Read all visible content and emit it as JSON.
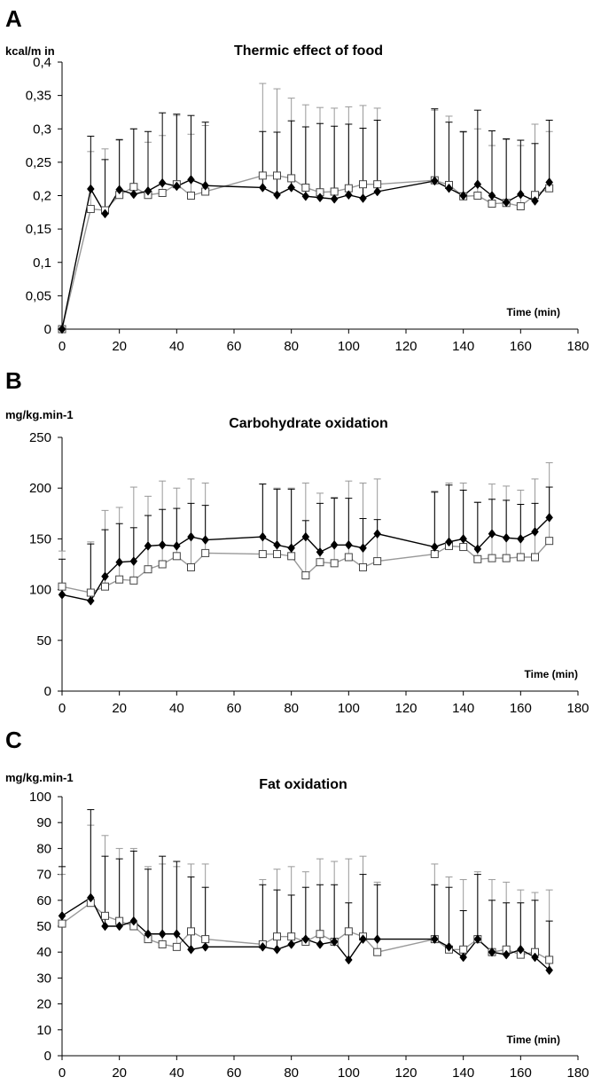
{
  "chart_data": [
    {
      "type": "line",
      "panel_letter": "A",
      "title": "Thermic effect of food",
      "ylabel": "kcal/m in",
      "xlabel": "Time (min)",
      "xlim": [
        0,
        180
      ],
      "ylim": [
        0,
        0.4
      ],
      "x_ticks": [
        0,
        20,
        40,
        60,
        80,
        100,
        120,
        140,
        160,
        180
      ],
      "y_ticks": [
        0,
        0.05,
        0.1,
        0.15,
        0.2,
        0.25,
        0.3,
        0.35,
        0.4
      ],
      "y_tick_labels": [
        "0",
        "0,05",
        "0,1",
        "0,15",
        "0,2",
        "0,25",
        "0,3",
        "0,35",
        "0,4"
      ],
      "grid": false,
      "series": [
        {
          "marker": "filled-diamond",
          "color": "#000000",
          "x": [
            0,
            10,
            15,
            20,
            25,
            30,
            35,
            40,
            45,
            50,
            70,
            75,
            80,
            85,
            90,
            95,
            100,
            105,
            110,
            130,
            135,
            140,
            145,
            150,
            155,
            160,
            165,
            170
          ],
          "y": [
            0,
            0.21,
            0.173,
            0.209,
            0.202,
            0.207,
            0.219,
            0.214,
            0.224,
            0.215,
            0.212,
            0.201,
            0.212,
            0.199,
            0.197,
            0.195,
            0.201,
            0.196,
            0.206,
            0.222,
            0.211,
            0.2,
            0.217,
            0.2,
            0.19,
            0.202,
            0.192,
            0.22
          ],
          "err_upper": [
            0,
            0.289,
            0.254,
            0.284,
            0.3,
            0.296,
            0.324,
            0.322,
            0.32,
            0.31,
            0.296,
            0.295,
            0.312,
            0.303,
            0.308,
            0.304,
            0.307,
            0.301,
            0.313,
            0.33,
            0.31,
            0.296,
            0.328,
            0.297,
            0.285,
            0.283,
            0.278,
            0.313
          ]
        },
        {
          "marker": "open-square",
          "color": "#999999",
          "x": [
            0,
            10,
            15,
            20,
            25,
            30,
            35,
            40,
            45,
            50,
            70,
            75,
            80,
            85,
            90,
            95,
            100,
            105,
            110,
            130,
            135,
            140,
            145,
            150,
            155,
            160,
            165,
            170
          ],
          "y": [
            0,
            0.18,
            0.178,
            0.201,
            0.213,
            0.201,
            0.204,
            0.217,
            0.2,
            0.206,
            0.23,
            0.23,
            0.226,
            0.212,
            0.205,
            0.206,
            0.211,
            0.217,
            0.217,
            0.223,
            0.216,
            0.199,
            0.2,
            0.188,
            0.189,
            0.184,
            0.201,
            0.211
          ],
          "err_upper": [
            0,
            0.266,
            0.27,
            0.283,
            0.3,
            0.28,
            0.29,
            0.32,
            0.292,
            0.305,
            0.368,
            0.36,
            0.346,
            0.336,
            0.332,
            0.331,
            0.333,
            0.335,
            0.331,
            0.328,
            0.319,
            0.295,
            0.3,
            0.275,
            0.284,
            0.275,
            0.307,
            0.296
          ]
        }
      ]
    },
    {
      "type": "line",
      "panel_letter": "B",
      "title": "Carbohydrate oxidation",
      "ylabel": "mg/kg.min-1",
      "xlabel": "Time (min)",
      "xlim": [
        0,
        180
      ],
      "ylim": [
        0,
        250
      ],
      "x_ticks": [
        0,
        20,
        40,
        60,
        80,
        100,
        120,
        140,
        160,
        180
      ],
      "y_ticks": [
        0,
        50,
        100,
        150,
        200,
        250
      ],
      "y_tick_labels": [
        "0",
        "50",
        "100",
        "150",
        "200",
        "250"
      ],
      "grid": false,
      "series": [
        {
          "marker": "filled-diamond",
          "color": "#000000",
          "x": [
            0,
            10,
            15,
            20,
            25,
            30,
            35,
            40,
            45,
            50,
            70,
            75,
            80,
            85,
            90,
            95,
            100,
            105,
            110,
            130,
            135,
            140,
            145,
            150,
            155,
            160,
            165,
            170
          ],
          "y": [
            95,
            89,
            113,
            127,
            128,
            143,
            144,
            143,
            152,
            149,
            152,
            144,
            141,
            152,
            137,
            144,
            144,
            141,
            155,
            142,
            147,
            150,
            140,
            155,
            151,
            150,
            157,
            171
          ],
          "err_upper": [
            130,
            145,
            159,
            165,
            161,
            173,
            179,
            180,
            185,
            183,
            204,
            199,
            199,
            168,
            185,
            190,
            190,
            170,
            169,
            196,
            203,
            198,
            186,
            189,
            188,
            184,
            185,
            201
          ]
        },
        {
          "marker": "open-square",
          "color": "#999999",
          "x": [
            0,
            10,
            15,
            20,
            25,
            30,
            35,
            40,
            45,
            50,
            70,
            75,
            80,
            85,
            90,
            95,
            100,
            105,
            110,
            130,
            135,
            140,
            145,
            150,
            155,
            160,
            165,
            170
          ],
          "y": [
            103,
            97,
            103,
            110,
            109,
            120,
            125,
            133,
            122,
            136,
            135,
            135,
            133,
            114,
            127,
            126,
            132,
            122,
            128,
            135,
            143,
            142,
            130,
            131,
            131,
            132,
            132,
            148
          ],
          "err_upper": [
            138,
            147,
            178,
            181,
            201,
            192,
            207,
            200,
            209,
            205,
            204,
            200,
            200,
            205,
            195,
            191,
            207,
            205,
            209,
            197,
            205,
            205,
            186,
            204,
            202,
            198,
            209,
            225
          ]
        }
      ]
    },
    {
      "type": "line",
      "panel_letter": "C",
      "title": "Fat oxidation",
      "ylabel": "mg/kg.min-1",
      "xlabel": "Time (min)",
      "xlim": [
        0,
        180
      ],
      "ylim": [
        0,
        100
      ],
      "x_ticks": [
        0,
        20,
        40,
        60,
        80,
        100,
        120,
        140,
        160,
        180
      ],
      "y_ticks": [
        0,
        10,
        20,
        30,
        40,
        50,
        60,
        70,
        80,
        90,
        100
      ],
      "y_tick_labels": [
        "0",
        "10",
        "20",
        "30",
        "40",
        "50",
        "60",
        "70",
        "80",
        "90",
        "100"
      ],
      "grid": false,
      "series": [
        {
          "marker": "filled-diamond",
          "color": "#000000",
          "x": [
            0,
            10,
            15,
            20,
            25,
            30,
            35,
            40,
            45,
            50,
            70,
            75,
            80,
            85,
            90,
            95,
            100,
            105,
            110,
            130,
            135,
            140,
            145,
            150,
            155,
            160,
            165,
            170
          ],
          "y": [
            54,
            61,
            50,
            50,
            52,
            47,
            47,
            47,
            41,
            42,
            42,
            41,
            43,
            45,
            43,
            44,
            37,
            45,
            45,
            45,
            42,
            38,
            45,
            40,
            39,
            41,
            38,
            33
          ],
          "err_upper": [
            73,
            95,
            77,
            76,
            79,
            72,
            77,
            75,
            69,
            65,
            66,
            64,
            62,
            65,
            66,
            66,
            59,
            70,
            66,
            66,
            65,
            56,
            70,
            60,
            59,
            59,
            60,
            52
          ]
        },
        {
          "marker": "open-square",
          "color": "#999999",
          "x": [
            0,
            10,
            15,
            20,
            25,
            30,
            35,
            40,
            45,
            50,
            70,
            75,
            80,
            85,
            90,
            95,
            100,
            105,
            110,
            130,
            135,
            140,
            145,
            150,
            155,
            160,
            165,
            170
          ],
          "y": [
            51,
            59,
            54,
            52,
            50,
            45,
            43,
            42,
            48,
            45,
            43,
            46,
            46,
            44,
            47,
            44,
            48,
            46,
            40,
            45,
            41,
            41,
            45,
            40,
            41,
            39,
            40,
            37
          ],
          "err_upper": [
            70,
            89,
            85,
            80,
            80,
            73,
            74,
            73,
            74,
            74,
            68,
            72,
            73,
            71,
            76,
            75,
            76,
            77,
            67,
            74,
            69,
            68,
            71,
            68,
            67,
            64,
            63,
            64
          ]
        }
      ]
    }
  ]
}
